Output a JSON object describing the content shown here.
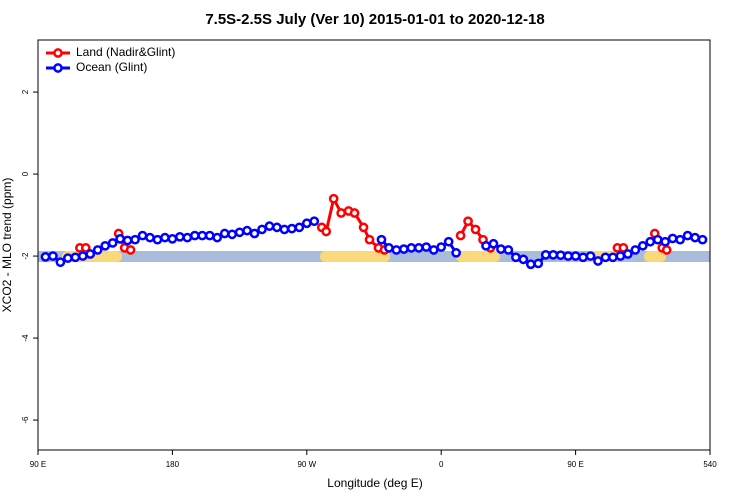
{
  "chart_data": {
    "type": "line",
    "title": "7.5S-2.5S July (Ver 10)   2015-01-01 to 2020-12-18",
    "x_label": "Longitude (deg E)",
    "y_label": "XCO2 - MLO trend (ppm)",
    "xlim": [
      90,
      540
    ],
    "ylim": [
      -6.73,
      3.27
    ],
    "xticks": [
      {
        "value": 90,
        "label": "90 E"
      },
      180,
      {
        "value": 270,
        "label": "90 W"
      },
      {
        "value": 360,
        "label": "0"
      },
      {
        "value": 450,
        "label": "90 E"
      },
      540
    ],
    "yticks": [
      2,
      0,
      -2,
      -4,
      -6
    ],
    "legend": "top-left",
    "series": [
      {
        "name": "Land (Nadir&Glint)",
        "color": "#ff0000",
        "x": [
          118,
          122,
          null,
          144,
          148,
          152,
          null,
          280,
          283,
          288,
          293,
          298,
          302,
          308,
          312,
          318,
          322,
          null,
          373,
          378,
          383,
          388,
          393,
          null,
          478,
          482,
          null,
          503,
          508,
          511
        ],
        "values": [
          -1.8,
          -1.8,
          null,
          -1.45,
          -1.8,
          -1.85,
          null,
          -1.3,
          -1.4,
          -0.6,
          -0.95,
          -0.9,
          -0.95,
          -1.3,
          -1.6,
          -1.8,
          -1.85,
          null,
          -1.5,
          -1.15,
          -1.35,
          -1.6,
          -1.8,
          null,
          -1.8,
          -1.8,
          null,
          -1.45,
          -1.8,
          -1.85
        ]
      },
      {
        "name": "Ocean (Glint)",
        "color": "#0000ff",
        "x": [
          95,
          100,
          105,
          110,
          115,
          120,
          125,
          130,
          135,
          140,
          145,
          150,
          155,
          160,
          165,
          170,
          175,
          180,
          185,
          190,
          195,
          200,
          205,
          210,
          215,
          220,
          225,
          230,
          235,
          240,
          245,
          250,
          255,
          260,
          265,
          270,
          275,
          280,
          285,
          290,
          295,
          300,
          305,
          310,
          315,
          320,
          325,
          330,
          335,
          340,
          345,
          350,
          355,
          360,
          365,
          370,
          375,
          380,
          385,
          390,
          395,
          400,
          405,
          410,
          415,
          420,
          425,
          430,
          435,
          440,
          445,
          450,
          455,
          460,
          465,
          470,
          475,
          480,
          485,
          490,
          495,
          500,
          505,
          510,
          515,
          520,
          525,
          530,
          535
        ],
        "values": [
          -2.02,
          -2.0,
          -2.15,
          -2.05,
          -2.03,
          -2.0,
          -1.95,
          -1.85,
          -1.75,
          -1.68,
          -1.58,
          -1.62,
          -1.6,
          -1.5,
          -1.55,
          -1.6,
          -1.55,
          -1.58,
          -1.53,
          -1.55,
          -1.5,
          -1.5,
          -1.5,
          -1.55,
          -1.45,
          -1.47,
          -1.42,
          -1.38,
          -1.45,
          -1.35,
          -1.27,
          -1.3,
          -1.35,
          -1.33,
          -1.3,
          -1.2,
          -1.15,
          null,
          null,
          null,
          null,
          null,
          null,
          null,
          null,
          -1.6,
          -1.8,
          -1.85,
          -1.83,
          -1.8,
          -1.8,
          -1.78,
          -1.85,
          -1.78,
          -1.65,
          -1.92,
          null,
          null,
          null,
          -1.75,
          -1.7,
          -1.83,
          -1.85,
          -2.03,
          -2.08,
          -2.2,
          -2.18,
          -1.97,
          -1.97,
          -1.98,
          -2.0,
          -2.0,
          -2.03,
          -2.0,
          -2.12,
          -2.03,
          -2.03,
          -2.0,
          -1.95,
          -1.85,
          -1.75,
          -1.65,
          -1.6,
          -1.65,
          -1.57,
          -1.6,
          -1.5,
          -1.55,
          -1.6
        ]
      }
    ]
  }
}
